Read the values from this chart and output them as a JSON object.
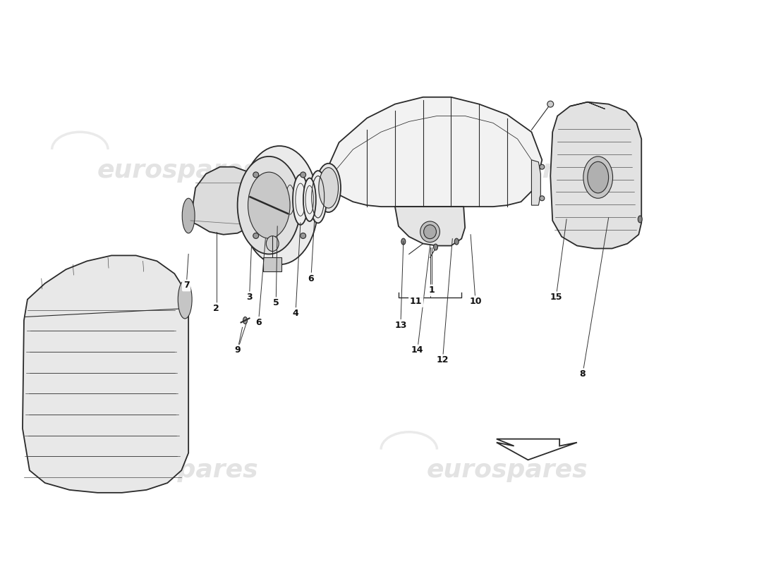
{
  "background_color": "#ffffff",
  "line_color": "#2a2a2a",
  "watermark_color": "#cccccc",
  "watermark_text": "eurospares",
  "part_numbers": [
    "1",
    "2",
    "3",
    "4",
    "5",
    "6",
    "6",
    "7",
    "8",
    "9",
    "10",
    "11",
    "12",
    "13",
    "14",
    "15"
  ]
}
